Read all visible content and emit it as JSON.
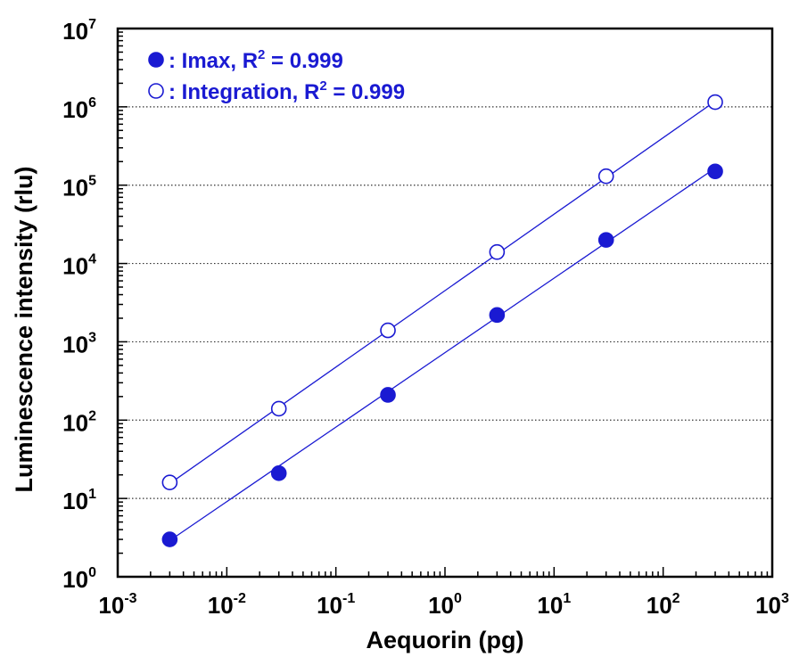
{
  "chart_data": {
    "type": "scatter",
    "xlabel": "Aequorin (pg)",
    "ylabel": "Luminescence intensity (rlu)",
    "x_scale": "log",
    "y_scale": "log",
    "xlim": [
      0.001,
      1000
    ],
    "ylim": [
      1,
      10000000
    ],
    "x_ticks": [
      {
        "base": "10",
        "exp": "-3",
        "value": 0.001
      },
      {
        "base": "10",
        "exp": "-2",
        "value": 0.01
      },
      {
        "base": "10",
        "exp": "-1",
        "value": 0.1
      },
      {
        "base": "10",
        "exp": "0",
        "value": 1
      },
      {
        "base": "10",
        "exp": "1",
        "value": 10
      },
      {
        "base": "10",
        "exp": "2",
        "value": 100
      },
      {
        "base": "10",
        "exp": "3",
        "value": 1000
      }
    ],
    "y_ticks": [
      {
        "base": "10",
        "exp": "0",
        "value": 1
      },
      {
        "base": "10",
        "exp": "1",
        "value": 10
      },
      {
        "base": "10",
        "exp": "2",
        "value": 100
      },
      {
        "base": "10",
        "exp": "3",
        "value": 1000
      },
      {
        "base": "10",
        "exp": "4",
        "value": 10000
      },
      {
        "base": "10",
        "exp": "5",
        "value": 100000
      },
      {
        "base": "10",
        "exp": "6",
        "value": 1000000
      },
      {
        "base": "10",
        "exp": "7",
        "value": 10000000
      }
    ],
    "grid": "horizontal dotted at major y ticks",
    "legend_position": "top-left",
    "series": [
      {
        "legend_prefix": ": Imax, R",
        "legend_sup": "2",
        "legend_suffix": " = 0.999",
        "marker": "filled-circle",
        "color": "#1a1ad2",
        "x": [
          0.003,
          0.03,
          0.3,
          3,
          30,
          300
        ],
        "y": [
          3,
          21,
          210,
          2200,
          20000,
          150000
        ],
        "fit_line": [
          [
            0.003,
            2.9
          ],
          [
            300,
            165000
          ]
        ]
      },
      {
        "legend_prefix": ": Integration, R",
        "legend_sup": "2",
        "legend_suffix": " = 0.999",
        "marker": "open-circle",
        "color": "#1a1ad2",
        "x": [
          0.003,
          0.03,
          0.3,
          3,
          30,
          300
        ],
        "y": [
          16,
          140,
          1400,
          14000,
          130000,
          1150000
        ],
        "fit_line": [
          [
            0.003,
            15.5
          ],
          [
            300,
            1180000
          ]
        ]
      }
    ]
  }
}
